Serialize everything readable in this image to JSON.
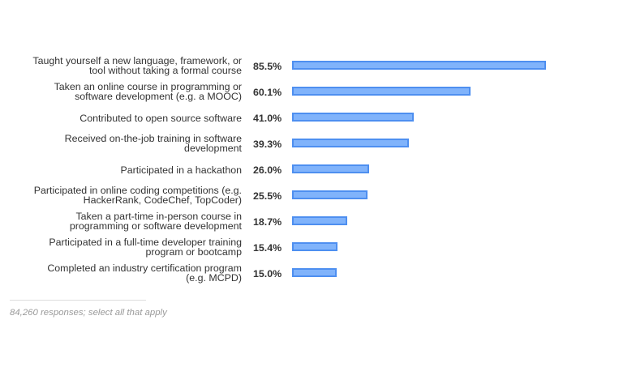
{
  "chart_data": {
    "type": "bar",
    "orientation": "horizontal",
    "categories": [
      "Taught yourself a new language, framework, or tool without taking a formal course",
      "Taken an online course in programming or software development (e.g. a MOOC)",
      "Contributed to open source software",
      "Received on-the-job training in software development",
      "Participated in a hackathon",
      "Participated in online coding competitions (e.g. HackerRank, CodeChef, TopCoder)",
      "Taken a part-time in-person course in programming or software development",
      "Participated in a full-time developer training program or bootcamp",
      "Completed an industry certification program (e.g. MCPD)"
    ],
    "label_lines": [
      [
        "Taught yourself a new language, framework, or",
        "tool without taking a formal course"
      ],
      [
        "Taken an online course in programming or",
        "software development (e.g. a MOOC)"
      ],
      [
        "Contributed to open source software"
      ],
      [
        "Received on-the-job training in software",
        "development"
      ],
      [
        "Participated in a hackathon"
      ],
      [
        "Participated in online coding competitions (e.g.",
        "HackerRank, CodeChef, TopCoder)"
      ],
      [
        "Taken a part-time in-person course in",
        "programming or software development"
      ],
      [
        "Participated in a full-time developer training",
        "program or bootcamp"
      ],
      [
        "Completed an industry certification program",
        "(e.g. MCPD)"
      ]
    ],
    "values": [
      85.5,
      60.1,
      41.0,
      39.3,
      26.0,
      25.5,
      18.7,
      15.4,
      15.0
    ],
    "value_labels": [
      "85.5%",
      "60.1%",
      "41.0%",
      "39.3%",
      "26.0%",
      "25.5%",
      "18.7%",
      "15.4%",
      "15.0%"
    ],
    "xlim": [
      0,
      100
    ],
    "grid": false,
    "colors": {
      "bar_fill": "#80b3fb",
      "bar_border": "#4e8ff0",
      "text": "#333333",
      "footnote": "#9a9a9a"
    }
  },
  "footnote": "84,260 responses; select all that apply"
}
